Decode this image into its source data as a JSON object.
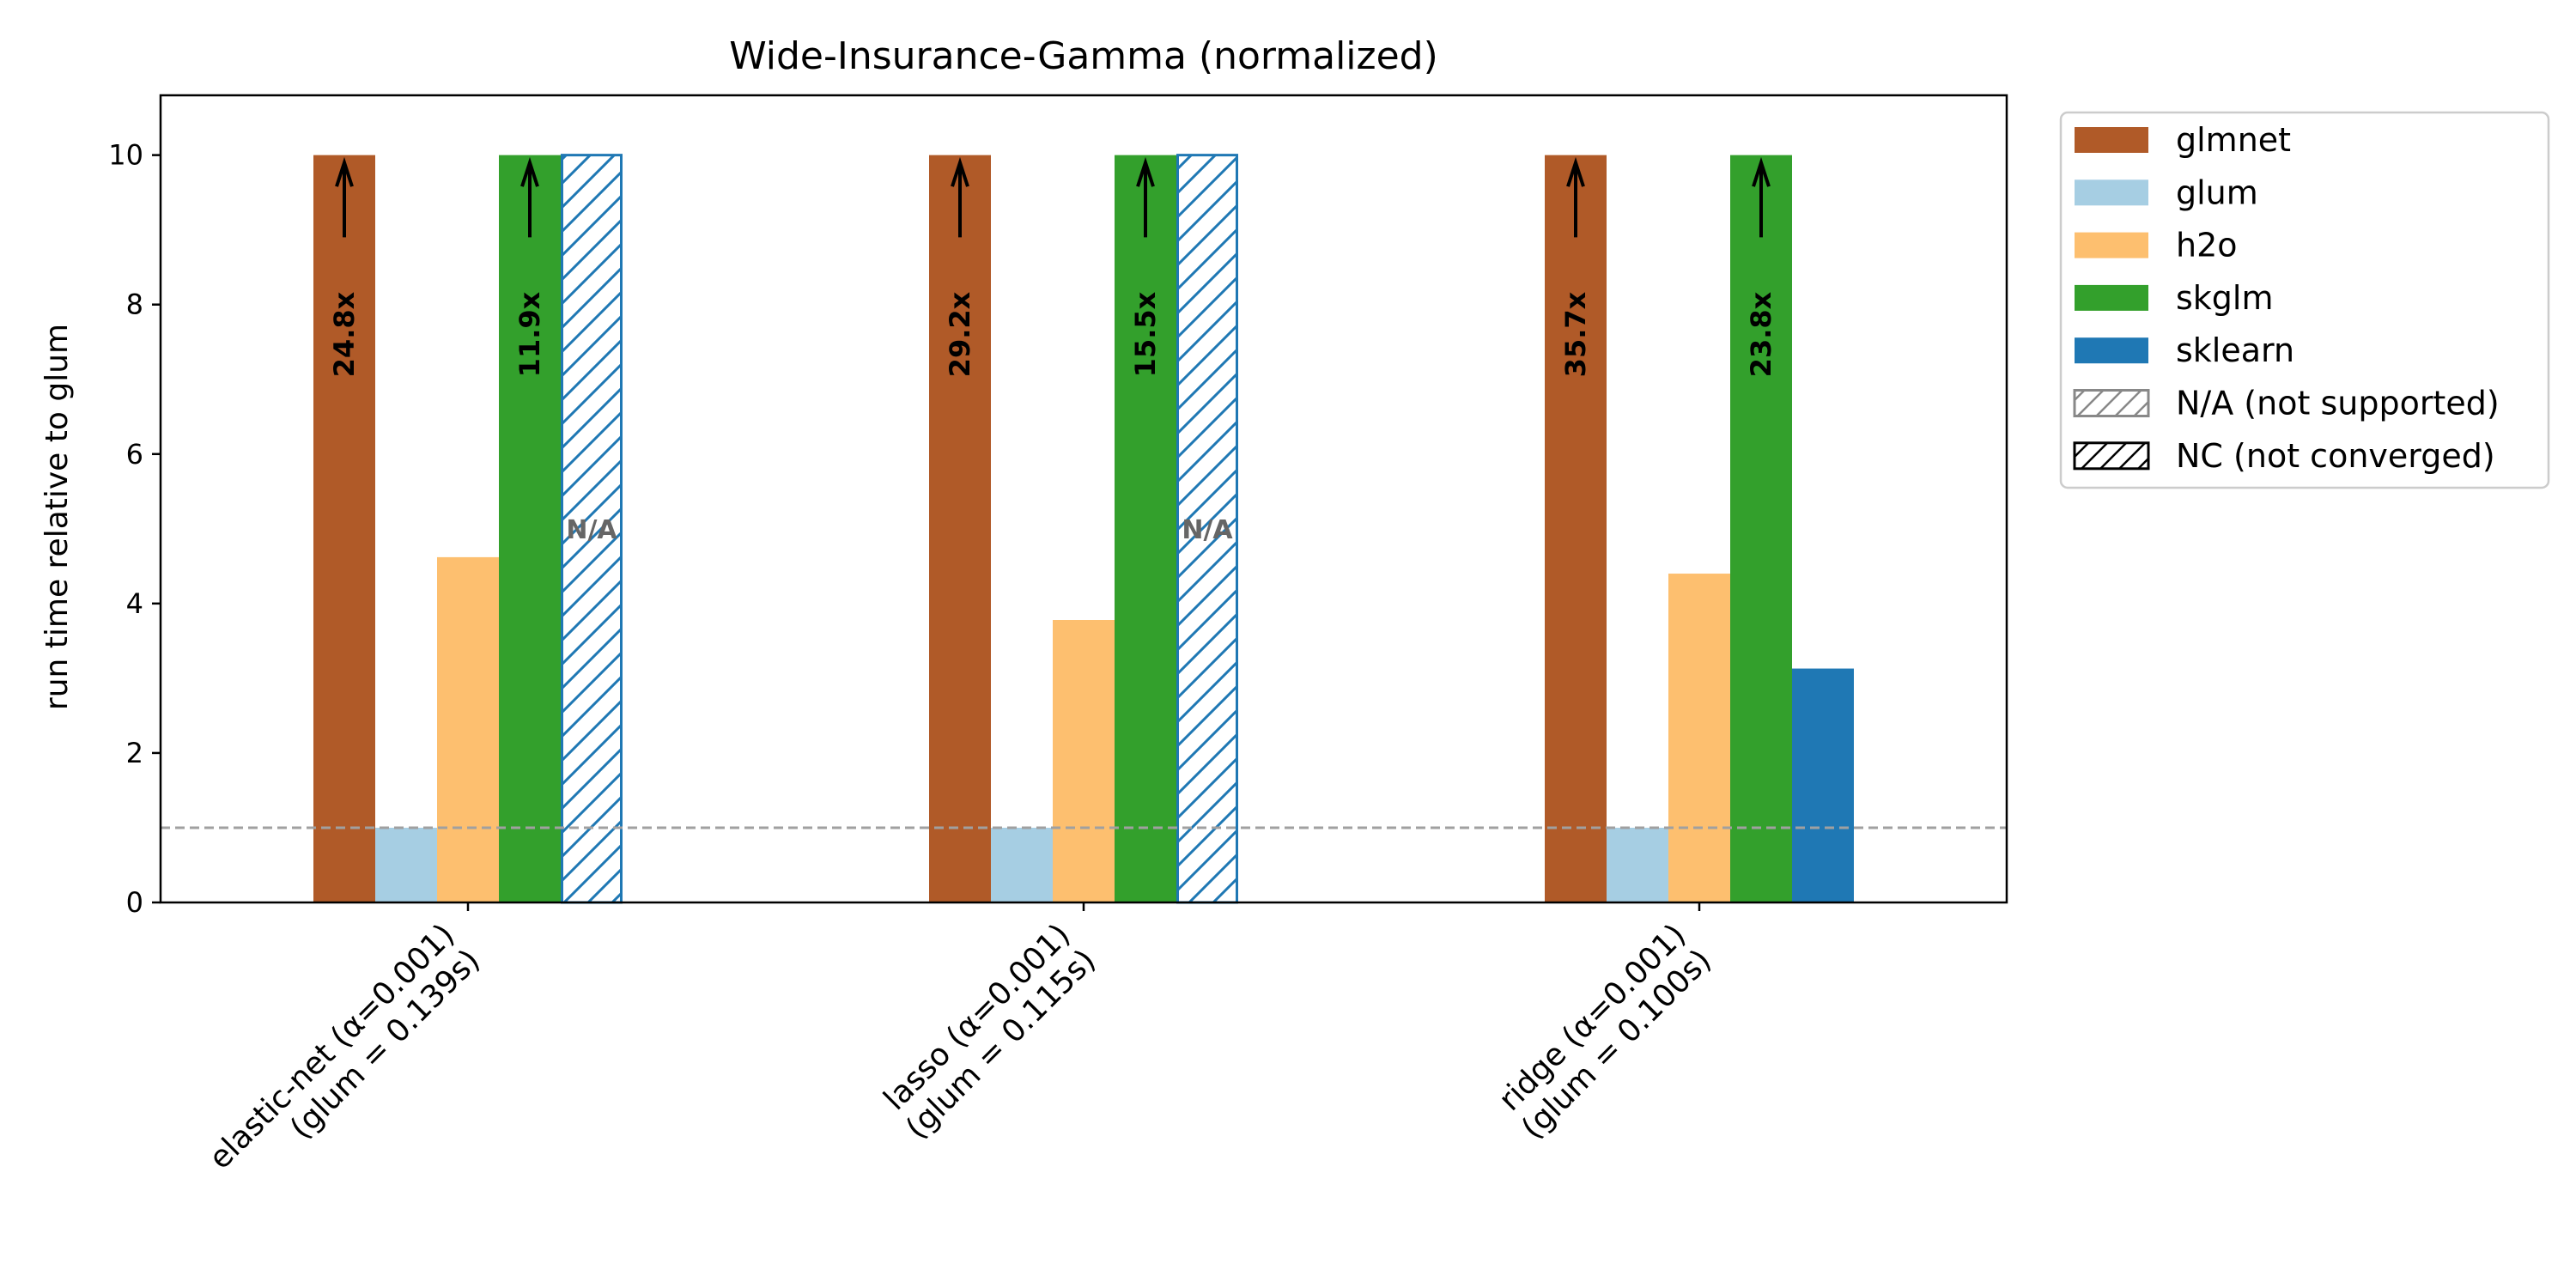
{
  "chart_data": {
    "type": "bar",
    "title": "Wide-Insurance-Gamma (normalized)",
    "ylabel": "run time relative to glum",
    "xlabel": "",
    "ylim": [
      0,
      10.8
    ],
    "yticks": [
      "0",
      "2",
      "4",
      "6",
      "8",
      "10"
    ],
    "reference_line": 1,
    "categories": [
      {
        "line1": "elastic-net (α=0.001)",
        "line2": "(glum = 0.139s)"
      },
      {
        "line1": "lasso (α=0.001)",
        "line2": "(glum = 0.115s)"
      },
      {
        "line1": "ridge (α=0.001)",
        "line2": "(glum = 0.100s)"
      }
    ],
    "series": [
      {
        "name": "glmnet",
        "color": "#b05a28",
        "values": [
          10,
          10,
          10
        ],
        "clipped": [
          true,
          true,
          true
        ],
        "labels": [
          "24.8x",
          "29.2x",
          "35.7x"
        ]
      },
      {
        "name": "glum",
        "color": "#a6cee3",
        "values": [
          1,
          1,
          1
        ]
      },
      {
        "name": "h2o",
        "color": "#fdbf6f",
        "values": [
          4.62,
          3.78,
          4.4
        ]
      },
      {
        "name": "skglm",
        "color": "#33a02c",
        "values": [
          10,
          10,
          10
        ],
        "clipped": [
          true,
          true,
          true
        ],
        "labels": [
          "11.9x",
          "15.5x",
          "23.8x"
        ]
      },
      {
        "name": "sklearn",
        "color": "#1f78b4",
        "values": [
          null,
          null,
          3.13
        ],
        "not_supported": [
          true,
          true,
          false
        ]
      }
    ],
    "na_text": "N/A",
    "legend": {
      "placement": "outside-top-right",
      "na_label": "N/A (not supported)",
      "nc_label": "NC (not converged)"
    }
  }
}
